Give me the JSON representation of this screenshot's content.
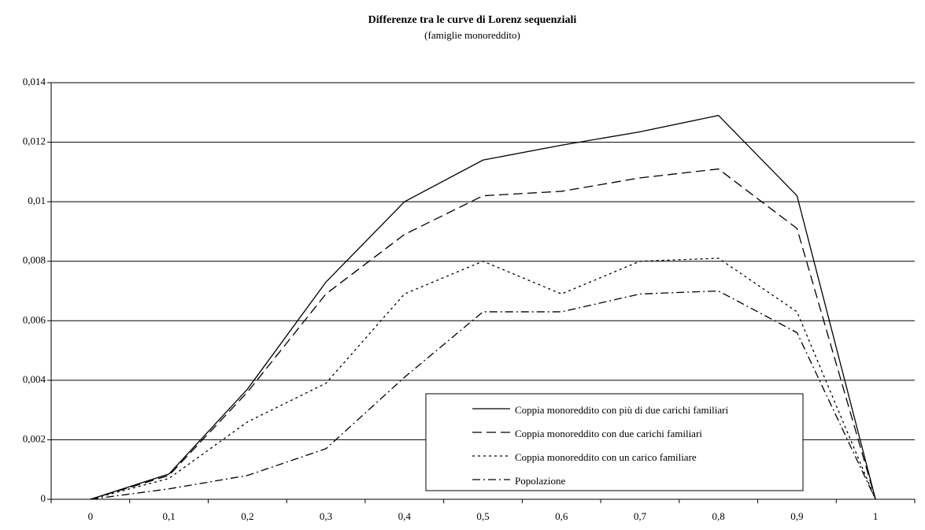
{
  "chart_data": {
    "type": "line",
    "title": "Differenze tra le curve di Lorenz sequenziali",
    "subtitle": "(famiglie monoreddito)",
    "categories": [
      "0",
      "0,1",
      "0,2",
      "0,3",
      "0,4",
      "0,5",
      "0,6",
      "0,7",
      "0,8",
      "0,9",
      "1"
    ],
    "series": [
      {
        "name": "Coppia monoreddito con più di due carichi familiari",
        "color": "#000000",
        "style": "solid",
        "values": [
          0,
          0.00085,
          0.0037,
          0.0073,
          0.01,
          0.0114,
          0.0119,
          0.01235,
          0.0129,
          0.0102,
          0
        ]
      },
      {
        "name": "Coppia monoreddito con due carichi familiari",
        "color": "#000000",
        "style": "dashed",
        "values": [
          0,
          0.0008,
          0.0036,
          0.0069,
          0.0089,
          0.0102,
          0.01035,
          0.0108,
          0.0111,
          0.0091,
          0
        ]
      },
      {
        "name": "Coppia monoreddito con un carico familiare",
        "color": "#000000",
        "style": "dotted",
        "values": [
          0,
          0.0007,
          0.0026,
          0.0039,
          0.0069,
          0.008,
          0.0069,
          0.008,
          0.0081,
          0.0063,
          0
        ]
      },
      {
        "name": "Popolazione",
        "color": "#000000",
        "style": "dashdot",
        "values": [
          0,
          0.00035,
          0.0008,
          0.0017,
          0.0041,
          0.0063,
          0.0063,
          0.0069,
          0.007,
          0.0056,
          0
        ]
      }
    ],
    "ylim": [
      0,
      0.014
    ],
    "yticks": [
      0,
      {
        "value": 0.002,
        "label": "0,002"
      },
      {
        "value": 0.004,
        "label": "0,004"
      },
      {
        "value": 0.006,
        "label": "0,006"
      },
      {
        "value": 0.008,
        "label": "0,008"
      },
      {
        "value": 0.01,
        "label": "0,01"
      },
      {
        "value": 0.012,
        "label": "0,012"
      },
      {
        "value": 0.014,
        "label": "0,014"
      }
    ],
    "grid": true
  }
}
